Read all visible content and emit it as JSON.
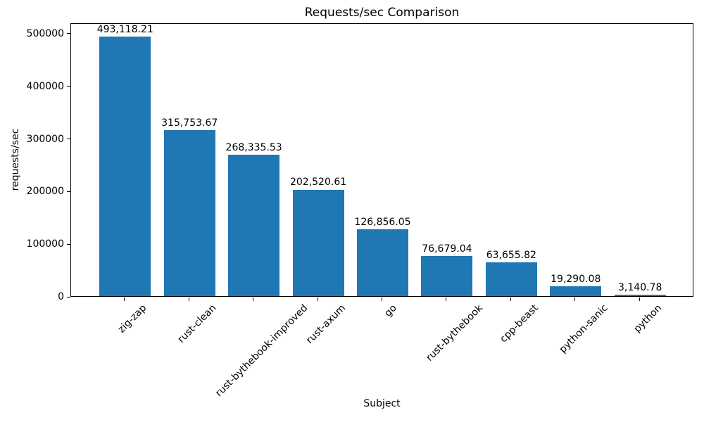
{
  "chart_data": {
    "type": "bar",
    "title": "Requests/sec Comparison",
    "xlabel": "Subject",
    "ylabel": "requests/sec",
    "categories": [
      "zig-zap",
      "rust-clean",
      "rust-bythebook-improved",
      "rust-axum",
      "go",
      "rust-bythebook",
      "cpp-beast",
      "python-sanic",
      "python"
    ],
    "values": [
      493118.21,
      315753.67,
      268335.53,
      202520.61,
      126856.05,
      76679.04,
      63655.82,
      19290.08,
      3140.78
    ],
    "value_labels": [
      "493,118.21",
      "315,753.67",
      "268,335.53",
      "202,520.61",
      "126,856.05",
      "76,679.04",
      "63,655.82",
      "19,290.08",
      "3,140.78"
    ],
    "yticks": [
      0,
      100000,
      200000,
      300000,
      400000,
      500000
    ],
    "ytick_labels": [
      "0",
      "100000",
      "200000",
      "300000",
      "400000",
      "500000"
    ],
    "ylim": [
      0,
      520000
    ],
    "bar_color": "#1f77b4",
    "axis_color": "#000000",
    "grid": false,
    "legend_position": "none"
  }
}
